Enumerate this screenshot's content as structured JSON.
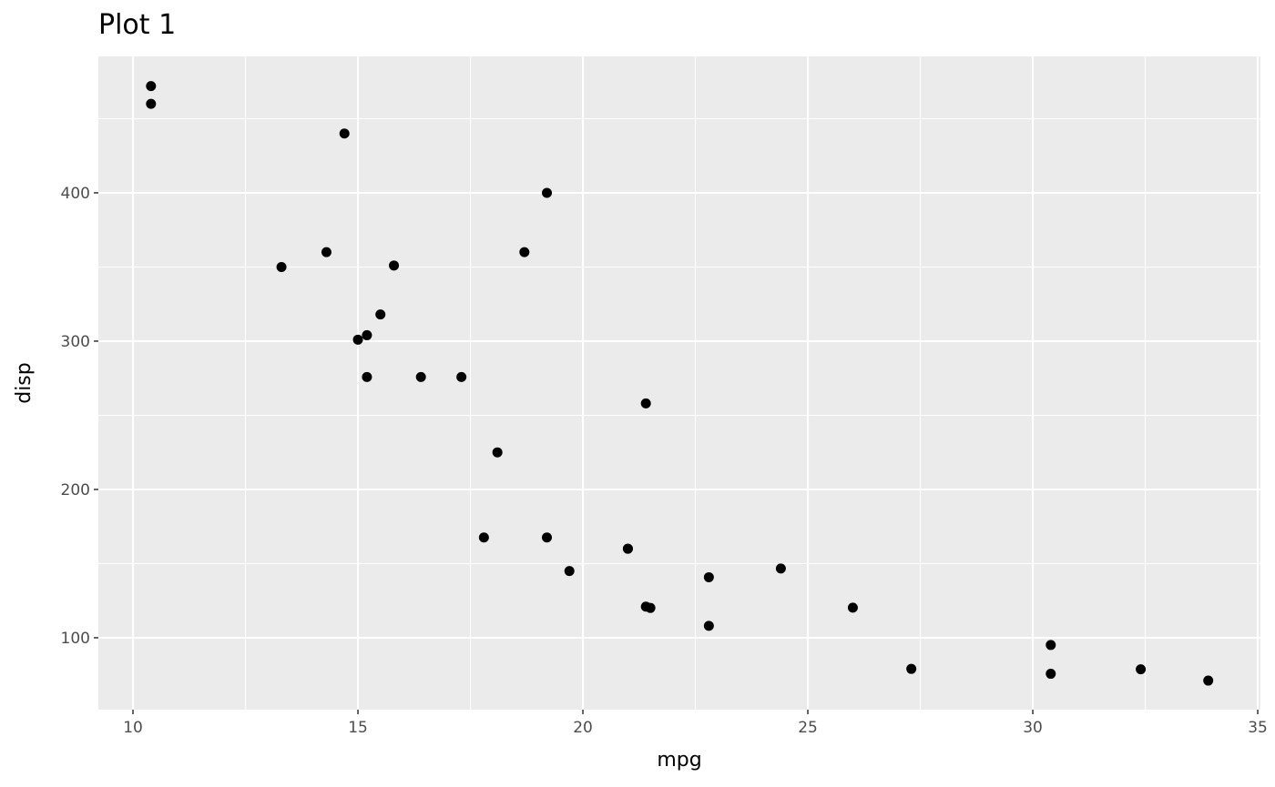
{
  "chart_data": {
    "type": "scatter",
    "title": "Plot 1",
    "xlabel": "mpg",
    "ylabel": "disp",
    "xlim": [
      9.23,
      35.06
    ],
    "ylim": [
      51.5,
      492
    ],
    "xticks": [
      10,
      15,
      20,
      25,
      30,
      35
    ],
    "yticks": [
      100,
      200,
      300,
      400
    ],
    "grid": true,
    "panel_background": "#EBEBEB",
    "grid_color": "#FFFFFF",
    "point_color": "#000000",
    "points": [
      [
        21.0,
        160
      ],
      [
        21.0,
        160
      ],
      [
        22.8,
        108
      ],
      [
        21.4,
        258
      ],
      [
        18.7,
        360
      ],
      [
        18.1,
        225
      ],
      [
        14.3,
        360
      ],
      [
        24.4,
        146.7
      ],
      [
        22.8,
        140.8
      ],
      [
        19.2,
        167.6
      ],
      [
        17.8,
        167.6
      ],
      [
        16.4,
        275.8
      ],
      [
        17.3,
        275.8
      ],
      [
        15.2,
        275.8
      ],
      [
        10.4,
        472
      ],
      [
        10.4,
        460
      ],
      [
        14.7,
        440
      ],
      [
        32.4,
        78.7
      ],
      [
        30.4,
        75.7
      ],
      [
        33.9,
        71.1
      ],
      [
        21.5,
        120.1
      ],
      [
        15.5,
        318
      ],
      [
        15.2,
        304
      ],
      [
        13.3,
        350
      ],
      [
        19.2,
        400
      ],
      [
        27.3,
        79
      ],
      [
        26.0,
        120.3
      ],
      [
        30.4,
        95.1
      ],
      [
        15.8,
        351
      ],
      [
        19.7,
        145
      ],
      [
        15.0,
        301
      ],
      [
        21.4,
        121
      ]
    ]
  }
}
